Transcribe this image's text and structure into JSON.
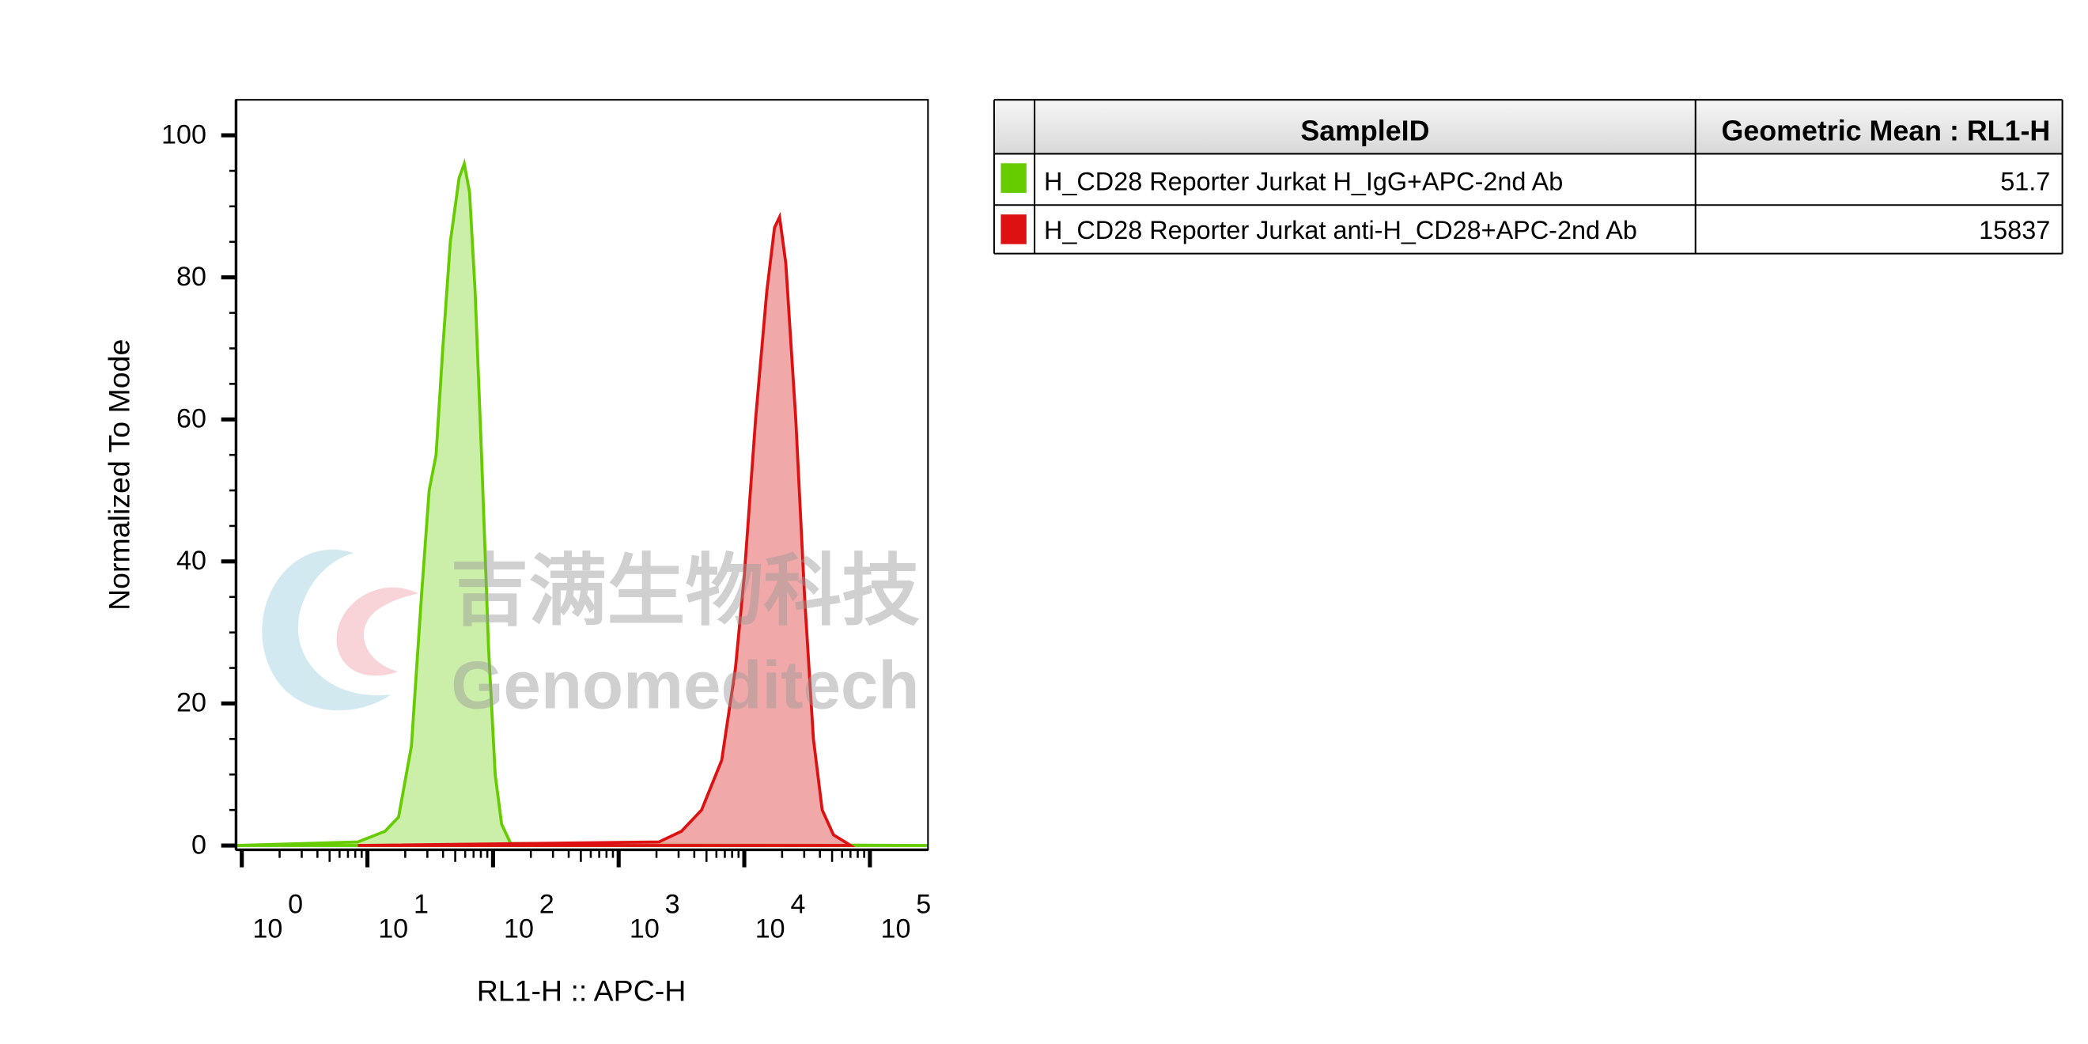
{
  "chart_data": {
    "type": "histogram-overlay",
    "xlabel": "RL1-H :: APC-H",
    "ylabel": "Normalized To Mode",
    "xscale": "log",
    "xlim": [
      0.9,
      290000
    ],
    "ylim": [
      -0.6,
      105
    ],
    "xticks": [
      {
        "value": 1,
        "label": "10",
        "sup": "0"
      },
      {
        "value": 10,
        "label": "10",
        "sup": "1"
      },
      {
        "value": 100,
        "label": "10",
        "sup": "2"
      },
      {
        "value": 1000,
        "label": "10",
        "sup": "3"
      },
      {
        "value": 10000,
        "label": "10",
        "sup": "4"
      },
      {
        "value": 100000,
        "label": "10",
        "sup": "5"
      }
    ],
    "yticks": [
      0,
      20,
      40,
      60,
      80,
      100
    ],
    "series": [
      {
        "name": "H_CD28 Reporter Jurkat H_IgG+APC-2nd Ab",
        "color": "#66cc00",
        "fill": "#c2eb9a",
        "x": [
          0.9,
          8.4,
          13.8,
          17.7,
          22.4,
          26.9,
          31,
          35.2,
          39.8,
          45.7,
          53.7,
          59,
          65,
          72,
          81,
          92,
          104,
          117,
          138,
          290000
        ],
        "y": [
          0,
          0.5,
          2,
          4,
          14,
          35,
          50,
          55,
          70,
          85,
          94,
          96,
          92,
          78,
          55,
          28,
          10,
          3,
          0.3,
          0
        ]
      },
      {
        "name": "H_CD28 Reporter Jurkat anti-H_CD28+APC-2nd Ab",
        "color": "#dd1111",
        "fill": "#ee9999",
        "x": [
          8.4,
          2090,
          3160,
          4570,
          6610,
          8510,
          10000,
          12300,
          15100,
          17400,
          19100,
          21400,
          25700,
          30200,
          35500,
          41700,
          51300,
          66100,
          70000
        ],
        "y": [
          0,
          0.5,
          2,
          5,
          12,
          25,
          38,
          60,
          78,
          87,
          88.5,
          82,
          60,
          35,
          15,
          5,
          1.5,
          0.3,
          0
        ]
      }
    ],
    "watermark": {
      "cn": "吉满生物科技",
      "en": "Genomeditech"
    }
  },
  "table": {
    "header": [
      "SampleID",
      "Geometric Mean : RL1-H"
    ],
    "rows": [
      [
        "H_CD28 Reporter Jurkat H_IgG+APC-2nd Ab",
        "51.7"
      ],
      [
        "H_CD28 Reporter Jurkat anti-H_CD28+APC-2nd Ab",
        "15837"
      ]
    ]
  }
}
